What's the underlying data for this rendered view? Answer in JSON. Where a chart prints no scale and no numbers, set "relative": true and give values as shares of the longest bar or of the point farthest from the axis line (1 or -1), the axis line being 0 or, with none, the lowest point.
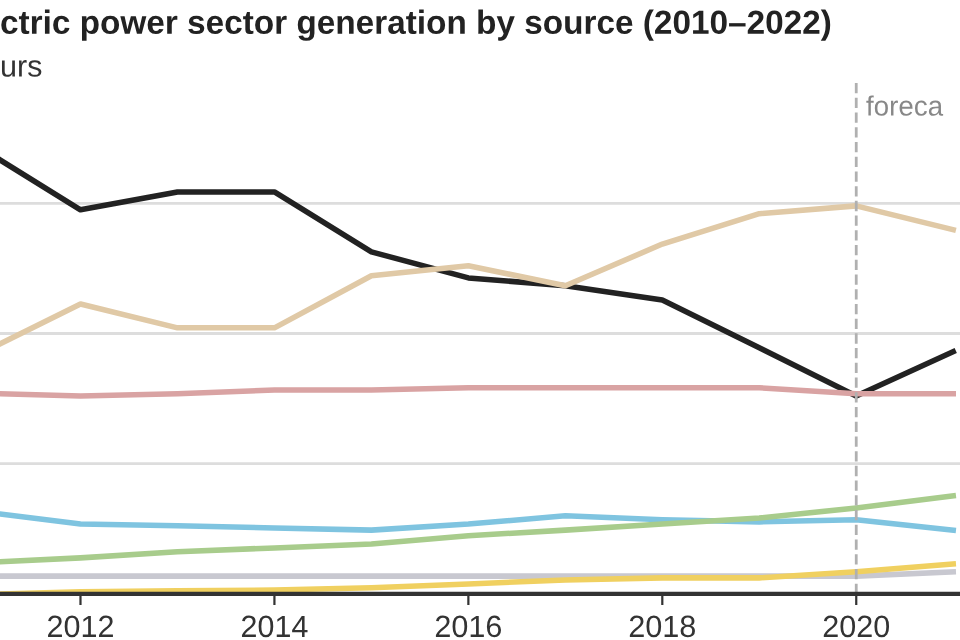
{
  "chart_data": {
    "type": "line",
    "title": "ctric power sector generation by source (2010–2022)",
    "subtitle": "urs",
    "x": [
      2011.17,
      2012,
      2013,
      2014,
      2015,
      2016,
      2017,
      2018,
      2019,
      2020,
      2021
    ],
    "relative": true,
    "xlim": [
      2011.17,
      2021.07
    ],
    "xticks": [
      2012,
      2014,
      2016,
      2018,
      2020
    ],
    "grid": "y",
    "legend": false,
    "marker": "none",
    "line_style": "solid",
    "ref_lines": [
      {
        "axis": "x",
        "value": 2020,
        "label": "foreca",
        "color": "#b0b0b0",
        "line_style": "dashed"
      }
    ],
    "series": [
      {
        "color": "#222222",
        "values": [
          1,
          0.885,
          0.926,
          0.926,
          0.788,
          0.728,
          0.71,
          0.677,
          0.567,
          0.456,
          0.558
        ]
      },
      {
        "color": "#e0c9a6",
        "values": [
          0.576,
          0.668,
          0.613,
          0.613,
          0.733,
          0.756,
          0.71,
          0.806,
          0.876,
          0.894,
          0.839
        ]
      },
      {
        "color": "#d9a3a3",
        "values": [
          0.461,
          0.456,
          0.461,
          0.47,
          0.47,
          0.475,
          0.475,
          0.475,
          0.475,
          0.461,
          0.461
        ]
      },
      {
        "color": "#7fc4e0",
        "values": [
          0.184,
          0.161,
          0.157,
          0.152,
          0.147,
          0.161,
          0.18,
          0.171,
          0.166,
          0.171,
          0.147
        ]
      },
      {
        "color": "#a8cc8c",
        "values": [
          0.074,
          0.083,
          0.097,
          0.106,
          0.115,
          0.134,
          0.147,
          0.161,
          0.175,
          0.198,
          0.226
        ]
      },
      {
        "color": "#c8c8d0",
        "values": [
          0.041,
          0.041,
          0.041,
          0.041,
          0.041,
          0.041,
          0.041,
          0.041,
          0.041,
          0.041,
          0.051
        ]
      },
      {
        "color": "#f0d060",
        "values": [
          0,
          0.005,
          0.007,
          0.009,
          0.014,
          0.023,
          0.032,
          0.037,
          0.037,
          0.051,
          0.069
        ]
      }
    ]
  }
}
